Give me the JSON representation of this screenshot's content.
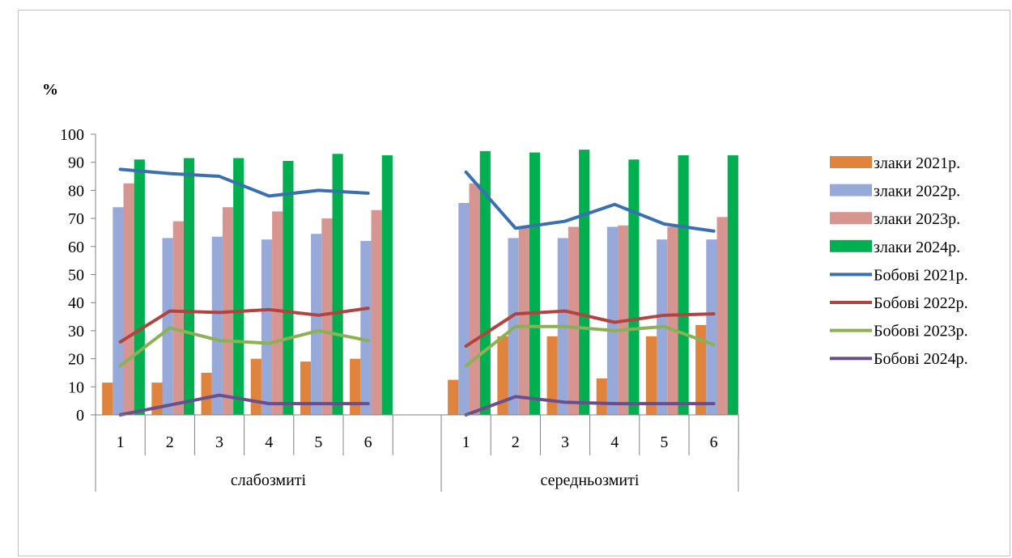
{
  "chart_data": {
    "type": "bar",
    "ylabel": "%",
    "ylim": [
      0,
      100
    ],
    "yticks": [
      "0",
      "10",
      "20",
      "30",
      "40",
      "50",
      "60",
      "70",
      "80",
      "90",
      "100"
    ],
    "groups": [
      {
        "label": "слабозмиті",
        "categories": [
          "1",
          "2",
          "3",
          "4",
          "5",
          "6"
        ]
      },
      {
        "label": "середньозмиті",
        "categories": [
          "1",
          "2",
          "3",
          "4",
          "5",
          "6"
        ]
      }
    ],
    "series": [
      {
        "name": "злаки 2021р.",
        "kind": "bar",
        "color": "#e0843d",
        "values": [
          [
            11.5,
            11.5,
            15,
            20,
            19,
            20
          ],
          [
            12.5,
            28,
            28,
            13,
            28,
            32
          ]
        ]
      },
      {
        "name": "злаки 2022р.",
        "kind": "bar",
        "color": "#97a9d8",
        "values": [
          [
            74,
            63,
            63.5,
            62.5,
            64.5,
            62
          ],
          [
            75.5,
            63,
            63,
            67,
            62.5,
            62.5
          ]
        ]
      },
      {
        "name": "злаки 2023р.",
        "kind": "bar",
        "color": "#d79592",
        "values": [
          [
            82.5,
            69,
            74,
            72.5,
            70,
            73
          ],
          [
            82.5,
            67,
            67,
            67.5,
            67,
            70.5
          ]
        ]
      },
      {
        "name": "злаки 2024р.",
        "kind": "bar",
        "color": "#00b050",
        "values": [
          [
            91,
            91.5,
            91.5,
            90.5,
            93,
            92.5
          ],
          [
            94,
            93.5,
            94.5,
            91,
            92.5,
            92.5
          ]
        ]
      },
      {
        "name": "Бобові 2021р.",
        "kind": "line",
        "color": "#3a6fb0",
        "values": [
          [
            87.5,
            86,
            85,
            78,
            80,
            79
          ],
          [
            86.5,
            66.5,
            69,
            75,
            68,
            65.5
          ]
        ]
      },
      {
        "name": "Бобові 2022р.",
        "kind": "line",
        "color": "#b04440",
        "values": [
          [
            26,
            37,
            36.5,
            37.5,
            35.5,
            38
          ],
          [
            24.5,
            36,
            37,
            33,
            35.5,
            36
          ]
        ]
      },
      {
        "name": "Бобові 2023р.",
        "kind": "line",
        "color": "#8cb054",
        "values": [
          [
            17.5,
            31,
            26.5,
            25.5,
            30,
            26.5
          ],
          [
            17.5,
            31.5,
            31.5,
            30,
            31.5,
            25
          ]
        ]
      },
      {
        "name": "Бобові 2024р.",
        "kind": "line",
        "color": "#6a4f8c",
        "values": [
          [
            0,
            3.5,
            7,
            4,
            4,
            4
          ],
          [
            0,
            6.5,
            4.5,
            4,
            4,
            4
          ]
        ]
      }
    ],
    "legend_position": "right",
    "grid": false
  }
}
